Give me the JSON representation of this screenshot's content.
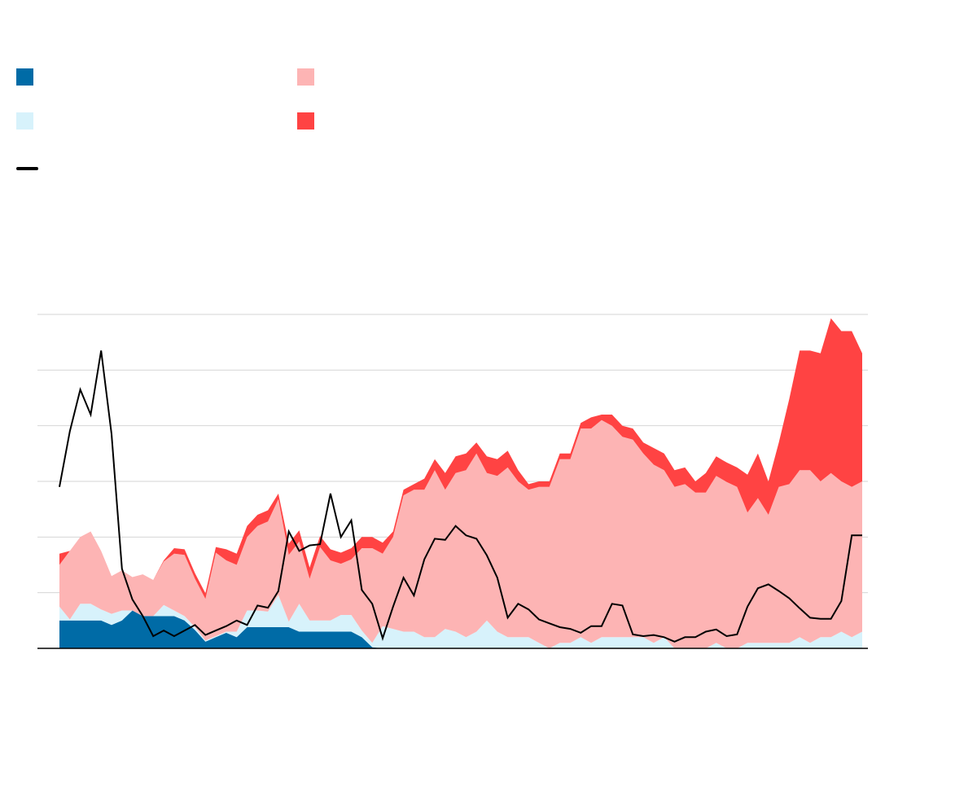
{
  "chart_data": {
    "type": "area",
    "title": "",
    "xlabel": "",
    "ylabel": "",
    "ylim": [
      0,
      6
    ],
    "grid": true,
    "legend_position": "top-left",
    "n_points": 78,
    "series": [
      {
        "name": "",
        "kind": "stacked-area",
        "color": "#006ba6",
        "values": [
          0.5,
          0.5,
          0.5,
          0.5,
          0.5,
          0.42,
          0.5,
          0.68,
          0.58,
          0.58,
          0.58,
          0.58,
          0.5,
          0.33,
          0.12,
          0.2,
          0.28,
          0.2,
          0.38,
          0.38,
          0.38,
          0.38,
          0.38,
          0.3,
          0.3,
          0.3,
          0.3,
          0.3,
          0.3,
          0.2,
          0.02,
          0,
          0,
          0,
          0,
          0,
          0,
          0,
          0,
          0,
          0,
          0,
          0,
          0,
          0,
          0,
          0,
          0,
          0,
          0,
          0,
          0,
          0,
          0,
          0,
          0,
          0,
          0,
          0,
          0,
          0,
          0,
          0,
          0,
          0,
          0,
          0,
          0,
          0,
          0,
          0,
          0,
          0,
          0,
          0,
          0,
          0,
          0
        ]
      },
      {
        "name": "",
        "kind": "stacked-area",
        "color": "#d7f2fb",
        "values": [
          0.25,
          0.02,
          0.3,
          0.3,
          0.2,
          0.2,
          0.18,
          0,
          0,
          0,
          0.2,
          0.1,
          0.08,
          0.05,
          0.02,
          0.02,
          0.02,
          0.1,
          0.3,
          0.3,
          0.28,
          0.58,
          0.1,
          0.5,
          0.2,
          0.2,
          0.2,
          0.3,
          0.3,
          0.12,
          0.08,
          0.4,
          0.35,
          0.3,
          0.3,
          0.2,
          0.2,
          0.35,
          0.3,
          0.2,
          0.3,
          0.5,
          0.3,
          0.2,
          0.2,
          0.2,
          0.1,
          0,
          0.1,
          0.1,
          0.2,
          0.1,
          0.2,
          0.2,
          0.2,
          0.2,
          0.2,
          0.1,
          0.2,
          0,
          0,
          0,
          0,
          0.1,
          0,
          0,
          0.1,
          0.1,
          0.1,
          0.1,
          0.1,
          0.2,
          0.1,
          0.2,
          0.2,
          0.3,
          0.2,
          0.3
        ]
      },
      {
        "name": "",
        "kind": "stacked-area",
        "color": "#fdb4b4",
        "values": [
          0.75,
          1.23,
          1.2,
          1.3,
          1.05,
          0.68,
          0.72,
          0.6,
          0.75,
          0.65,
          0.78,
          1.02,
          1.1,
          0.87,
          0.75,
          1.5,
          1.28,
          1.2,
          1.32,
          1.52,
          1.62,
          1.72,
          1.2,
          1.12,
          0.75,
          1.32,
          1.08,
          0.92,
          1.0,
          1.48,
          1.7,
          1.3,
          1.65,
          2.45,
          2.55,
          2.65,
          3.0,
          2.5,
          2.85,
          3.0,
          3.2,
          2.65,
          2.8,
          3.05,
          2.8,
          2.65,
          2.8,
          2.9,
          3.3,
          3.3,
          3.75,
          3.85,
          3.9,
          3.8,
          3.6,
          3.55,
          3.3,
          3.2,
          3.0,
          2.9,
          2.95,
          2.8,
          2.8,
          3.0,
          2.99,
          2.9,
          2.34,
          2.6,
          2.3,
          2.8,
          2.85,
          3.0,
          3.1,
          2.8,
          2.95,
          2.7,
          2.7,
          2.7
        ]
      },
      {
        "name": "",
        "kind": "stacked-area",
        "color": "#ff4343",
        "values": [
          0.2,
          0,
          0,
          0,
          0,
          0,
          0,
          0,
          0,
          0,
          0.02,
          0.1,
          0.1,
          0.1,
          0.1,
          0.1,
          0.2,
          0.2,
          0.2,
          0.2,
          0.2,
          0.1,
          0.2,
          0.2,
          0.2,
          0.2,
          0.2,
          0.2,
          0.2,
          0.2,
          0.2,
          0.2,
          0.1,
          0.1,
          0.1,
          0.2,
          0.2,
          0.3,
          0.3,
          0.3,
          0.2,
          0.3,
          0.3,
          0.3,
          0.2,
          0.1,
          0.1,
          0.1,
          0.1,
          0.1,
          0.1,
          0.2,
          0.1,
          0.2,
          0.2,
          0.2,
          0.2,
          0.3,
          0.3,
          0.3,
          0.3,
          0.2,
          0.35,
          0.35,
          0.35,
          0.35,
          0.68,
          0.8,
          0.6,
          0.8,
          1.53,
          2.15,
          2.15,
          2.3,
          2.78,
          2.7,
          2.8,
          2.3
        ]
      },
      {
        "name": "",
        "kind": "line",
        "color": "#000000",
        "values": [
          2.9,
          3.9,
          4.65,
          4.2,
          5.35,
          3.85,
          1.43,
          0.88,
          0.58,
          0.22,
          0.32,
          0.22,
          0.32,
          0.42,
          0.24,
          0.32,
          0.4,
          0.5,
          0.42,
          0.77,
          0.73,
          1.03,
          2.1,
          1.75,
          1.85,
          1.87,
          2.78,
          2.0,
          2.3,
          1.05,
          0.8,
          0.18,
          0.75,
          1.27,
          0.95,
          1.6,
          1.97,
          1.95,
          2.2,
          2.03,
          1.97,
          1.67,
          1.27,
          0.55,
          0.8,
          0.7,
          0.52,
          0.45,
          0.38,
          0.35,
          0.28,
          0.4,
          0.4,
          0.8,
          0.77,
          0.25,
          0.22,
          0.24,
          0.2,
          0.12,
          0.2,
          0.2,
          0.3,
          0.34,
          0.22,
          0.25,
          0.75,
          1.08,
          1.15,
          1.03,
          0.9,
          0.72,
          0.55,
          0.53,
          0.53,
          0.85,
          2.03,
          2.03
        ]
      }
    ]
  }
}
